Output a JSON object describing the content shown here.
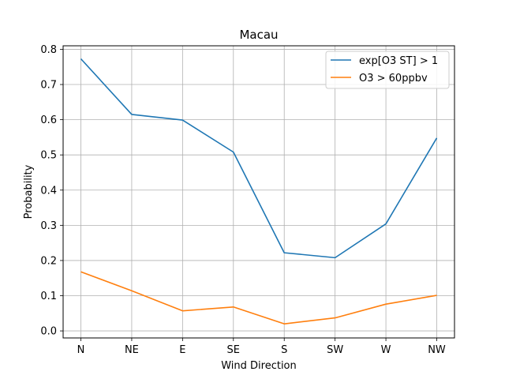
{
  "chart_data": {
    "type": "line",
    "title": "Macau",
    "xlabel": "Wind Direction",
    "ylabel": "Probability",
    "categories": [
      "N",
      "NE",
      "E",
      "SE",
      "S",
      "SW",
      "W",
      "NW"
    ],
    "ylim": [
      -0.02,
      0.81
    ],
    "yticks": [
      "0.0",
      "0.1",
      "0.2",
      "0.3",
      "0.4",
      "0.5",
      "0.6",
      "0.7",
      "0.8"
    ],
    "grid": true,
    "legend_position": "top-right",
    "series": [
      {
        "name": "exp[O3 ST] > 1",
        "color": "#1f77b4",
        "values": [
          0.773,
          0.615,
          0.599,
          0.508,
          0.222,
          0.208,
          0.304,
          0.548
        ]
      },
      {
        "name": "O3 > 60ppbv",
        "color": "#ff7f0e",
        "values": [
          0.168,
          0.114,
          0.057,
          0.068,
          0.02,
          0.037,
          0.076,
          0.101
        ]
      }
    ]
  }
}
